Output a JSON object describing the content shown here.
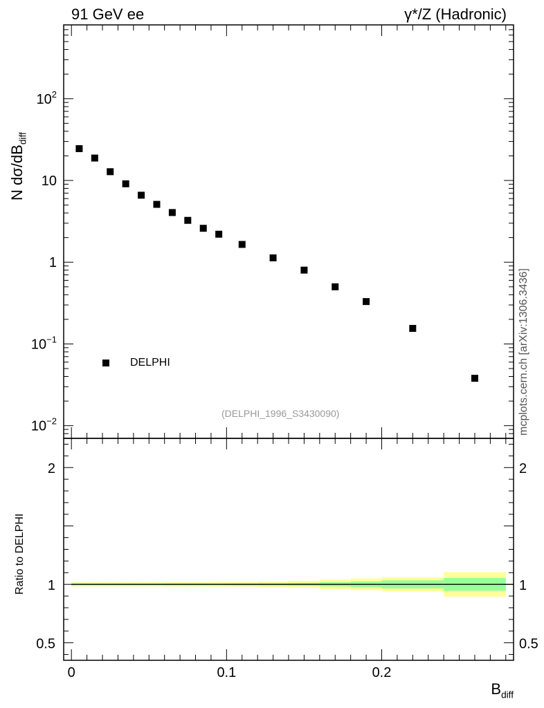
{
  "header": {
    "left_text": "91 GeV ee",
    "right_text": "γ*/Z (Hadronic)"
  },
  "side_credit": "mcplots.cern.ch [arXiv:1306.3436]",
  "source_tag": "(DELPHI_1996_S3430090)",
  "chart_data": [
    {
      "type": "scatter",
      "panel": "main",
      "ylabel_main": "N dσ/dB",
      "ylabel_sub": "diff",
      "yscale": "log",
      "ylim": [
        0.007,
        800
      ],
      "xlim": [
        -0.005,
        0.285
      ],
      "ytick_labels": [
        {
          "value": 0.01,
          "base": "10",
          "exp": "−2"
        },
        {
          "value": 0.1,
          "base": "10",
          "exp": "−1"
        },
        {
          "value": 1,
          "base": "1",
          "exp": ""
        },
        {
          "value": 10,
          "base": "10",
          "exp": ""
        },
        {
          "value": 100,
          "base": "10",
          "exp": "2"
        }
      ],
      "legend": {
        "placement": "left-lower",
        "entry": "DELPHI"
      },
      "series": [
        {
          "name": "DELPHI",
          "color": "#000000",
          "points": [
            {
              "x": 0.005,
              "y": 24.5
            },
            {
              "x": 0.015,
              "y": 18.8
            },
            {
              "x": 0.025,
              "y": 12.8
            },
            {
              "x": 0.035,
              "y": 9.1
            },
            {
              "x": 0.045,
              "y": 6.6
            },
            {
              "x": 0.055,
              "y": 5.1
            },
            {
              "x": 0.065,
              "y": 4.05
            },
            {
              "x": 0.075,
              "y": 3.25
            },
            {
              "x": 0.085,
              "y": 2.6
            },
            {
              "x": 0.095,
              "y": 2.2
            },
            {
              "x": 0.11,
              "y": 1.65
            },
            {
              "x": 0.13,
              "y": 1.13
            },
            {
              "x": 0.15,
              "y": 0.8
            },
            {
              "x": 0.17,
              "y": 0.5
            },
            {
              "x": 0.19,
              "y": 0.33
            },
            {
              "x": 0.22,
              "y": 0.155
            },
            {
              "x": 0.26,
              "y": 0.038
            }
          ]
        }
      ]
    },
    {
      "type": "area",
      "panel": "ratio",
      "ylabel": "Ratio to DELPHI",
      "ylim": [
        0.35,
        2.25
      ],
      "xlim": [
        -0.005,
        0.285
      ],
      "ytick_labels": [
        {
          "value": 0.5,
          "label": "0.5"
        },
        {
          "value": 1,
          "label": "1"
        },
        {
          "value": 2,
          "label": "2"
        }
      ],
      "xtick_labels": [
        {
          "value": 0,
          "label": "0"
        },
        {
          "value": 0.1,
          "label": "0.1"
        },
        {
          "value": 0.2,
          "label": "0.2"
        }
      ],
      "xlabel_main": "B",
      "xlabel_sub": "diff",
      "reference_line": 1,
      "colors": {
        "inner": "#99ff99",
        "outer": "#ffff99"
      },
      "bands": [
        {
          "x0": 0.0,
          "x1": 0.01,
          "inner": 0.008,
          "outer": 0.018
        },
        {
          "x0": 0.01,
          "x1": 0.02,
          "inner": 0.008,
          "outer": 0.018
        },
        {
          "x0": 0.02,
          "x1": 0.03,
          "inner": 0.008,
          "outer": 0.018
        },
        {
          "x0": 0.03,
          "x1": 0.04,
          "inner": 0.008,
          "outer": 0.018
        },
        {
          "x0": 0.04,
          "x1": 0.05,
          "inner": 0.008,
          "outer": 0.018
        },
        {
          "x0": 0.05,
          "x1": 0.06,
          "inner": 0.008,
          "outer": 0.018
        },
        {
          "x0": 0.06,
          "x1": 0.07,
          "inner": 0.009,
          "outer": 0.019
        },
        {
          "x0": 0.07,
          "x1": 0.08,
          "inner": 0.009,
          "outer": 0.019
        },
        {
          "x0": 0.08,
          "x1": 0.09,
          "inner": 0.009,
          "outer": 0.019
        },
        {
          "x0": 0.09,
          "x1": 0.1,
          "inner": 0.009,
          "outer": 0.02
        },
        {
          "x0": 0.1,
          "x1": 0.12,
          "inner": 0.01,
          "outer": 0.02
        },
        {
          "x0": 0.12,
          "x1": 0.14,
          "inner": 0.011,
          "outer": 0.024
        },
        {
          "x0": 0.14,
          "x1": 0.16,
          "inner": 0.013,
          "outer": 0.03
        },
        {
          "x0": 0.16,
          "x1": 0.18,
          "inner": 0.018,
          "outer": 0.04
        },
        {
          "x0": 0.18,
          "x1": 0.2,
          "inner": 0.025,
          "outer": 0.05
        },
        {
          "x0": 0.2,
          "x1": 0.24,
          "inner": 0.035,
          "outer": 0.06
        },
        {
          "x0": 0.24,
          "x1": 0.28,
          "inner": 0.055,
          "outer": 0.105
        }
      ]
    }
  ]
}
